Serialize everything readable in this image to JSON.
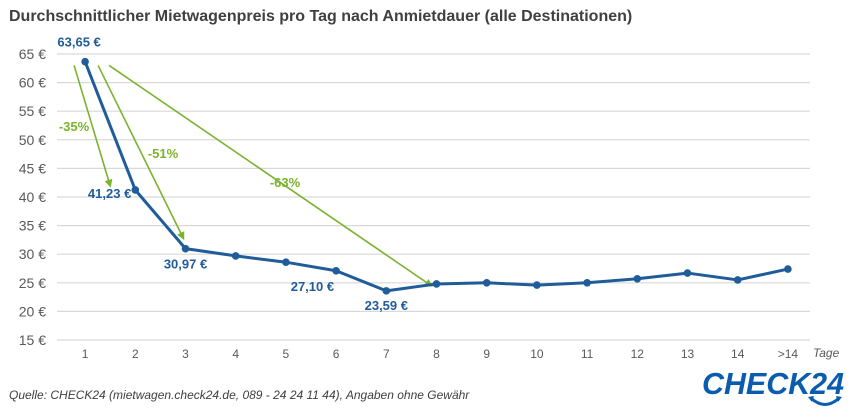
{
  "chart_data": {
    "type": "line",
    "title": "Durchschnittlicher Mietwagenpreis pro Tag nach Anmietdauer (alle Destinationen)",
    "xlabel": "Tage",
    "ylabel": "",
    "categories": [
      "1",
      "2",
      "3",
      "4",
      "5",
      "6",
      "7",
      "8",
      "9",
      "10",
      "11",
      "12",
      "13",
      "14",
      ">14"
    ],
    "series": [
      {
        "name": "Durchschnittlicher Mietwagenpreis pro Tag",
        "color": "#1f5c99",
        "values": [
          63.65,
          41.23,
          30.97,
          29.7,
          28.6,
          27.1,
          23.59,
          24.8,
          25.0,
          24.6,
          25.0,
          25.7,
          26.7,
          25.5,
          27.4
        ]
      }
    ],
    "ylim": [
      15,
      65
    ],
    "yticks": [
      15,
      20,
      25,
      30,
      35,
      40,
      45,
      50,
      55,
      60,
      65
    ],
    "ytick_labels": [
      "15 €",
      "20 €",
      "25 €",
      "30 €",
      "35 €",
      "40 €",
      "45 €",
      "50 €",
      "55 €",
      "60 €",
      "65 €"
    ],
    "grid": true,
    "data_labels": [
      {
        "index": 0,
        "text": "63,65 €"
      },
      {
        "index": 1,
        "text": "41,23 €"
      },
      {
        "index": 2,
        "text": "30,97 €"
      },
      {
        "index": 5,
        "text": "27,10 €"
      },
      {
        "index": 6,
        "text": "23,59 €"
      }
    ],
    "annotations": [
      {
        "type": "arrow",
        "from_index": 0,
        "to_index": 1,
        "text": "-35%",
        "color": "#7ab32e"
      },
      {
        "type": "arrow",
        "from_index": 0,
        "to_index": 2,
        "text": "-51%",
        "color": "#7ab32e"
      },
      {
        "type": "arrow",
        "from_index": 0,
        "to_index": 6,
        "text": "-63%",
        "color": "#7ab32e"
      }
    ]
  },
  "footer": {
    "source": "Quelle: CHECK24 (mietwagen.check24.de, 089 - 24 24 11 44), Angaben ohne Gewähr"
  },
  "logo": {
    "text": "CHECK24",
    "color": "#0a5cae"
  }
}
